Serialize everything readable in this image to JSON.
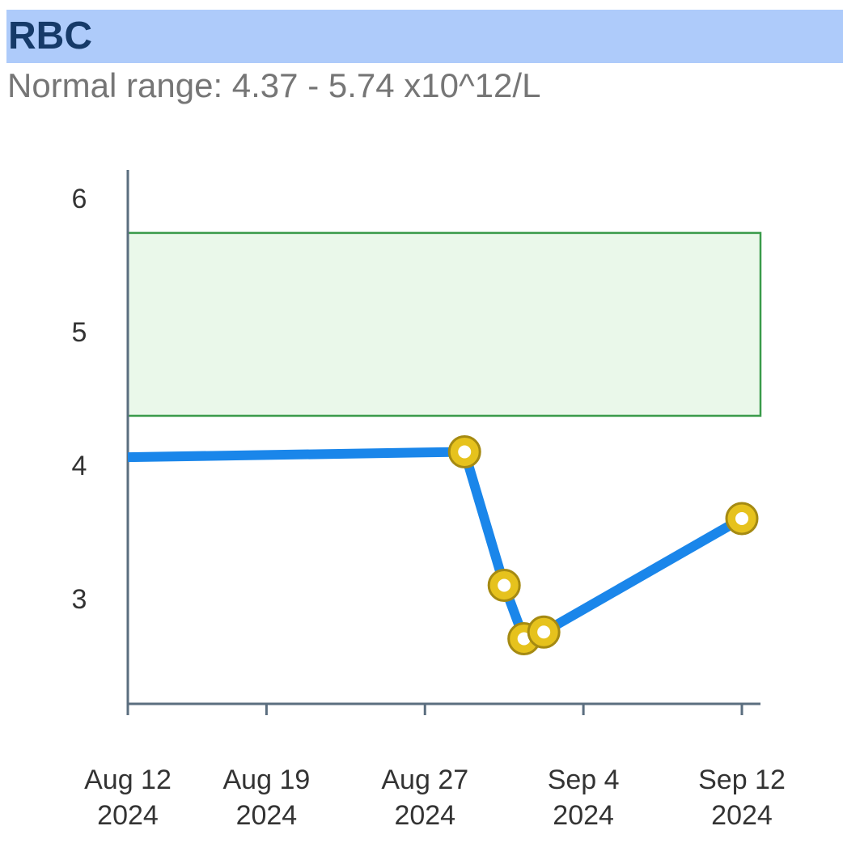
{
  "header": {
    "title": "RBC",
    "subtitle": "Normal range: 4.37 - 5.74 x10^12/L"
  },
  "chart_data": {
    "type": "line",
    "title": "RBC",
    "subtitle": "Normal range: 4.37 - 5.74 x10^12/L",
    "xlabel": "",
    "ylabel": "",
    "x_type": "date",
    "xlim": [
      "2024-08-12",
      "2024-09-12"
    ],
    "ylim": [
      2.2,
      6.2
    ],
    "yticks": [
      3,
      4,
      5,
      6
    ],
    "xticks": [
      {
        "date": "2024-08-12",
        "label": [
          "Aug 12",
          "2024"
        ]
      },
      {
        "date": "2024-08-19",
        "label": [
          "Aug 19",
          "2024"
        ]
      },
      {
        "date": "2024-08-27",
        "label": [
          "Aug 27",
          "2024"
        ]
      },
      {
        "date": "2024-09-04",
        "label": [
          "Sep 4",
          "2024"
        ]
      },
      {
        "date": "2024-09-12",
        "label": [
          "Sep 12",
          "2024"
        ]
      }
    ],
    "normal_range": [
      4.37,
      5.74
    ],
    "grid": false,
    "series": [
      {
        "x": [
          "2024-08-12",
          "2024-08-29",
          "2024-08-31",
          "2024-09-01",
          "2024-09-02",
          "2024-09-12"
        ],
        "values": [
          4.06,
          4.1,
          3.1,
          2.7,
          2.75,
          3.6
        ],
        "marker_x": [
          "2024-08-29",
          "2024-08-31",
          "2024-09-01",
          "2024-09-02",
          "2024-09-12"
        ],
        "marker_values": [
          4.1,
          3.1,
          2.7,
          2.75,
          3.6
        ]
      }
    ],
    "colors": {
      "line": "#1a86ea",
      "marker_fill": "#e6c21d",
      "marker_stroke": "#a58a12",
      "marker_center": "#ffffff",
      "range_fill": "#eaf8ea",
      "range_stroke": "#3a9b4a",
      "axis": "#5b6e7f"
    }
  }
}
